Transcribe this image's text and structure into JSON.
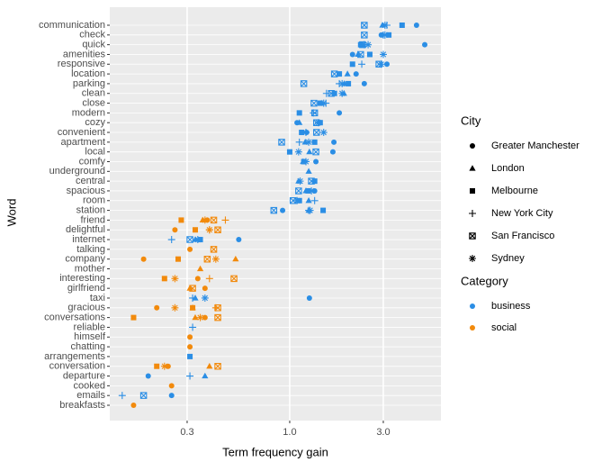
{
  "chart_data": {
    "type": "dot",
    "x_label": "Term frequency gain",
    "y_label": "Word",
    "log_x": true,
    "grid": true,
    "xlim": [
      0.121,
      5.9
    ],
    "xticks": [
      0.3,
      {
        "value": 1,
        "label": "1.0"
      },
      {
        "value": 3,
        "label": "3.0"
      }
    ],
    "categories": [
      "communication",
      "check",
      "quick",
      "amenities",
      "responsive",
      "location",
      "parking",
      "clean",
      "close",
      "modern",
      "cozy",
      "convenient",
      "apartment",
      "local",
      "comfy",
      "underground",
      "central",
      "spacious",
      "room",
      "station",
      "friend",
      "delightful",
      "internet",
      "talking",
      "company",
      "mother",
      "interesting",
      "girlfriend",
      "taxi",
      "gracious",
      "conversations",
      "reliable",
      "himself",
      "chatting",
      "arrangements",
      "conversation",
      "departure",
      "cooked",
      "emails",
      "breakfasts"
    ],
    "word_category": [
      "business",
      "business",
      "business",
      "business",
      "business",
      "business",
      "business",
      "business",
      "business",
      "business",
      "business",
      "business",
      "business",
      "business",
      "business",
      "business",
      "business",
      "business",
      "business",
      "business",
      "social",
      "social",
      "business",
      "social",
      "social",
      "social",
      "social",
      "social",
      "business",
      "social",
      "social",
      "business",
      "social",
      "social",
      "business",
      "social",
      "business",
      "social",
      "business",
      "social"
    ],
    "shape_legend_title": "City",
    "color_legend": {
      "title": "Category",
      "items": [
        {
          "name": "business",
          "color": "#2b8ee5"
        },
        {
          "name": "social",
          "color": "#f28a0c"
        }
      ]
    },
    "series": [
      {
        "name": "Greater Manchester",
        "shape": "circle",
        "values": [
          4.43,
          2.93,
          4.88,
          2.09,
          3.13,
          2.18,
          2.4,
          null,
          null,
          1.79,
          1.09,
          1.22,
          1.68,
          1.66,
          1.36,
          null,
          null,
          1.34,
          null,
          0.92,
          0.38,
          0.26,
          0.55,
          0.31,
          0.18,
          null,
          0.34,
          0.37,
          1.26,
          0.21,
          0.37,
          null,
          0.31,
          0.31,
          null,
          0.24,
          0.19,
          0.25,
          0.25,
          0.16
        ]
      },
      {
        "name": "London",
        "shape": "triangle",
        "values": [
          2.97,
          null,
          2.35,
          2.23,
          null,
          1.97,
          1.9,
          1.89,
          1.45,
          null,
          1.12,
          null,
          1.2,
          1.26,
          1.17,
          1.25,
          1.11,
          1.21,
          1.25,
          1.25,
          0.36,
          null,
          0.33,
          null,
          0.53,
          0.35,
          null,
          0.31,
          0.33,
          0.32,
          0.33,
          null,
          null,
          null,
          null,
          0.39,
          0.37,
          null,
          null,
          null
        ]
      },
      {
        "name": "Melbourne",
        "shape": "square",
        "values": [
          3.74,
          3.2,
          2.3,
          2.56,
          2.09,
          1.79,
          1.99,
          1.69,
          1.43,
          1.12,
          1.43,
          1.15,
          1.34,
          1.0,
          1.18,
          null,
          1.34,
          1.24,
          1.12,
          1.48,
          0.28,
          0.33,
          0.35,
          null,
          0.27,
          null,
          0.23,
          null,
          null,
          0.32,
          0.16,
          null,
          null,
          null,
          0.31,
          0.21,
          null,
          null,
          null,
          null
        ]
      },
      {
        "name": "New York City",
        "shape": "plus",
        "values": [
          3.13,
          3.0,
          2.4,
          null,
          2.33,
          null,
          1.79,
          1.54,
          1.53,
          1.32,
          null,
          1.21,
          1.12,
          null,
          null,
          null,
          null,
          null,
          1.34,
          1.25,
          0.47,
          0.39,
          0.25,
          null,
          null,
          null,
          0.39,
          null,
          0.32,
          0.42,
          null,
          0.32,
          null,
          null,
          null,
          null,
          0.31,
          null,
          0.14,
          null
        ]
      },
      {
        "name": "San Francisco",
        "shape": "boxcross",
        "values": [
          2.4,
          2.4,
          2.35,
          2.3,
          2.85,
          1.69,
          1.18,
          1.63,
          1.33,
          1.34,
          1.37,
          1.37,
          0.91,
          1.36,
          null,
          null,
          1.29,
          1.11,
          1.04,
          0.83,
          0.41,
          0.43,
          0.31,
          0.41,
          0.38,
          null,
          0.52,
          0.32,
          null,
          0.43,
          0.43,
          null,
          null,
          null,
          null,
          0.43,
          null,
          null,
          0.18,
          null
        ]
      },
      {
        "name": "Sydney",
        "shape": "asterisk",
        "values": [
          3.06,
          3.06,
          2.51,
          3.0,
          2.93,
          null,
          1.85,
          1.85,
          1.49,
          null,
          1.4,
          1.49,
          1.25,
          1.11,
          1.21,
          null,
          1.13,
          1.29,
          1.09,
          1.27,
          0.37,
          0.39,
          0.34,
          null,
          0.42,
          null,
          0.26,
          null,
          0.37,
          0.26,
          0.35,
          null,
          null,
          null,
          null,
          0.23,
          null,
          null,
          null,
          null
        ]
      }
    ]
  }
}
